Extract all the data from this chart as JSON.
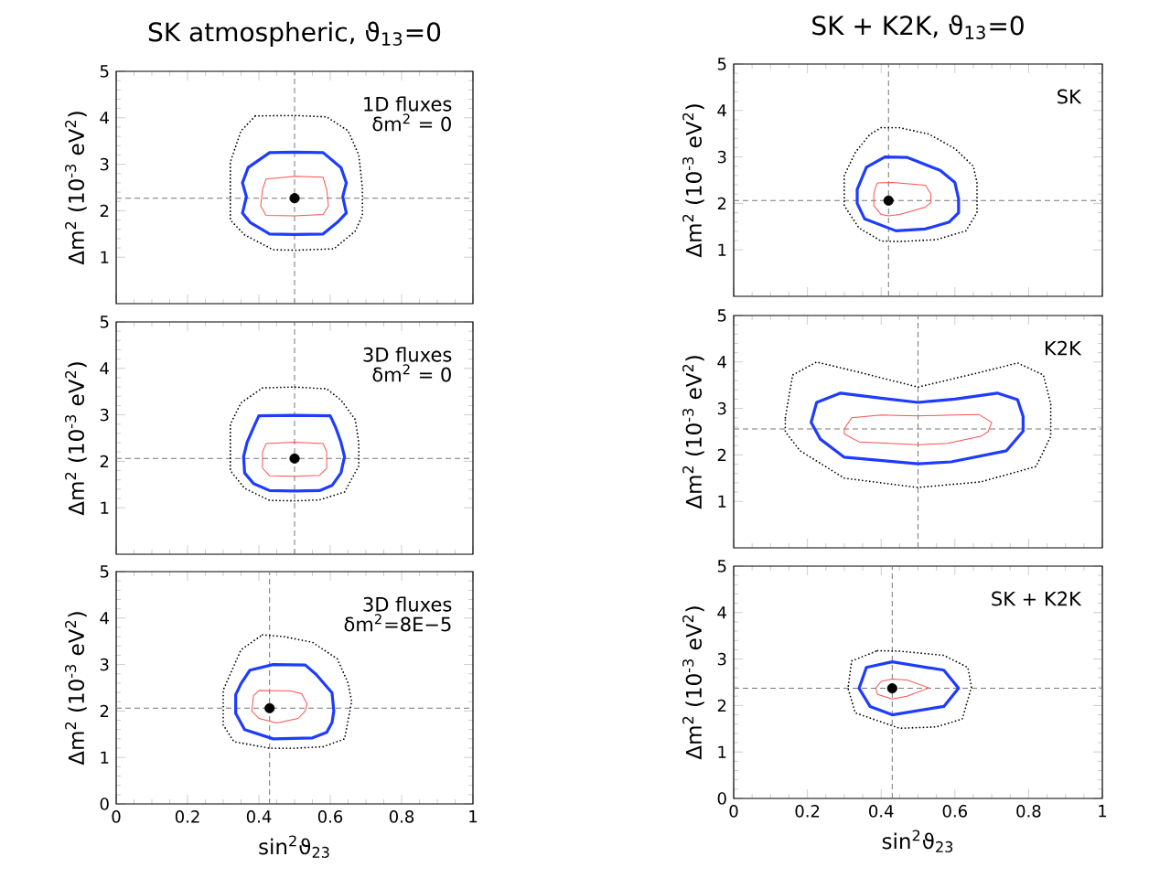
{
  "chart_data": [
    {
      "type": "scatter",
      "title": "SK atmospheric, ϑ$_{13}$=0",
      "ylabel": "Δm$^{2}$ (10$^{-3}$ eV$^{2}$)",
      "annotations": [
        "1D fluxes",
        "δm$^{2}$ = 0"
      ],
      "tick_labels": "y",
      "xlim": [
        0,
        1
      ],
      "xticks": [
        0,
        0.2,
        0.4,
        0.6,
        0.8,
        1
      ],
      "ylim": [
        0,
        5
      ],
      "yticks": [
        1,
        2,
        3,
        4,
        5
      ],
      "ref_lines": [
        {
          "axis": "x",
          "value": 0.5,
          "color": "#777777",
          "line_style": "dashed"
        },
        {
          "axis": "y",
          "value": 2.27,
          "color": "#777777",
          "line_style": "dashed"
        }
      ],
      "series": [
        {
          "color": "#000000",
          "x": [
            0.5
          ],
          "values": [
            2.27
          ]
        }
      ]
    },
    {
      "type": "scatter",
      "title": "SK + K2K, ϑ$_{13}$=0",
      "ylabel": "Δm$^{2}$ (10$^{-3}$ eV$^{2}$)",
      "annotations": [
        "SK"
      ],
      "tick_labels": "y",
      "xlim": [
        0,
        1
      ],
      "xticks": [
        0,
        0.2,
        0.4,
        0.6,
        0.8,
        1
      ],
      "ylim": [
        0,
        5
      ],
      "yticks": [
        1,
        2,
        3,
        4,
        5
      ],
      "ref_lines": [
        {
          "axis": "x",
          "value": 0.42,
          "color": "#777777",
          "line_style": "dashed"
        },
        {
          "axis": "y",
          "value": 2.06,
          "color": "#777777",
          "line_style": "dashed"
        }
      ],
      "series": [
        {
          "color": "#000000",
          "x": [
            0.42
          ],
          "values": [
            2.06
          ]
        }
      ]
    },
    {
      "type": "scatter",
      "ylabel": "Δm$^{2}$ (10$^{-3}$ eV$^{2}$)",
      "annotations": [
        "3D fluxes",
        "δm$^{2}$ = 0"
      ],
      "tick_labels": "y",
      "xlim": [
        0,
        1
      ],
      "xticks": [
        0,
        0.2,
        0.4,
        0.6,
        0.8,
        1
      ],
      "ylim": [
        0,
        5
      ],
      "yticks": [
        1,
        2,
        3,
        4,
        5
      ],
      "ref_lines": [
        {
          "axis": "x",
          "value": 0.5,
          "color": "#777777",
          "line_style": "dashed"
        },
        {
          "axis": "y",
          "value": 2.06,
          "color": "#777777",
          "line_style": "dashed"
        }
      ],
      "series": [
        {
          "color": "#000000",
          "x": [
            0.5
          ],
          "values": [
            2.06
          ]
        }
      ]
    },
    {
      "type": "scatter",
      "ylabel": "Δm$^{2}$ (10$^{-3}$ eV$^{2}$)",
      "annotations": [
        "K2K"
      ],
      "tick_labels": "y",
      "xlim": [
        0,
        1
      ],
      "xticks": [
        0,
        0.2,
        0.4,
        0.6,
        0.8,
        1
      ],
      "ylim": [
        0,
        5
      ],
      "yticks": [
        1,
        2,
        3,
        4,
        5
      ],
      "ref_lines": [
        {
          "axis": "x",
          "value": 0.5,
          "color": "#777777",
          "line_style": "dashed"
        },
        {
          "axis": "y",
          "value": 2.56,
          "color": "#777777",
          "line_style": "dashed"
        }
      ]
    },
    {
      "type": "scatter",
      "ylabel": "Δm$^{2}$ (10$^{-3}$ eV$^{2}$)",
      "xlabel": "sin$^{2}$ϑ$_{23}$",
      "annotations": [
        "3D fluxes",
        "δm$^{2}$=8E−5"
      ],
      "xlim": [
        0,
        1
      ],
      "xticks": [
        0,
        0.2,
        0.4,
        0.6,
        0.8,
        1
      ],
      "ylim": [
        0,
        5
      ],
      "yticks": [
        0,
        1,
        2,
        3,
        4,
        5
      ],
      "ref_lines": [
        {
          "axis": "x",
          "value": 0.43,
          "color": "#777777",
          "line_style": "dashed"
        },
        {
          "axis": "y",
          "value": 2.06,
          "color": "#777777",
          "line_style": "dashed"
        }
      ],
      "series": [
        {
          "color": "#000000",
          "x": [
            0.43
          ],
          "values": [
            2.06
          ]
        }
      ]
    },
    {
      "type": "scatter",
      "ylabel": "Δm$^{2}$ (10$^{-3}$ eV$^{2}$)",
      "xlabel": "sin$^{2}$ϑ$_{23}$",
      "annotations": [
        "SK + K2K"
      ],
      "xlim": [
        0,
        1
      ],
      "xticks": [
        0,
        0.2,
        0.4,
        0.6,
        0.8,
        1
      ],
      "ylim": [
        0,
        5
      ],
      "yticks": [
        0,
        1,
        2,
        3,
        4,
        5
      ],
      "ref_lines": [
        {
          "axis": "x",
          "value": 0.43,
          "color": "#777777",
          "line_style": "dashed"
        },
        {
          "axis": "y",
          "value": 2.37,
          "color": "#777777",
          "line_style": "dashed"
        }
      ],
      "series": [
        {
          "color": "#000000",
          "x": [
            0.43
          ],
          "values": [
            2.37
          ]
        }
      ]
    }
  ]
}
